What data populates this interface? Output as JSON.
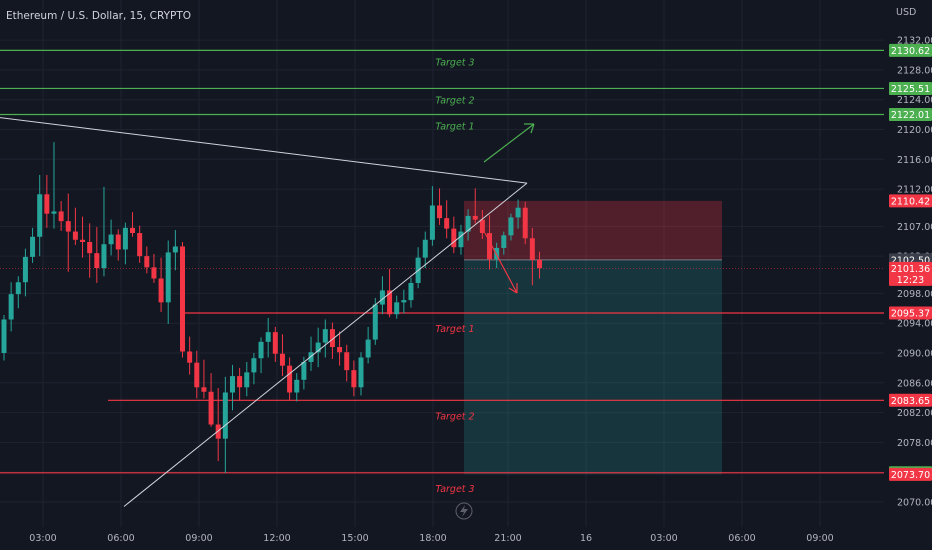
{
  "header": {
    "symbol": "Ethereum / U.S. Dollar, 15, CRYPTO"
  },
  "axis": {
    "currency": "USD"
  },
  "chart_data": {
    "type": "candlestick",
    "symbol": "Ethereum / U.S. Dollar",
    "interval": "15",
    "exchange": "CRYPTO",
    "ylim": [
      2069,
      2135
    ],
    "y_ticks": [
      2070,
      2074,
      2078,
      2082,
      2086,
      2090,
      2094,
      2098,
      2103,
      2107,
      2112,
      2116,
      2120,
      2124,
      2128,
      2132
    ],
    "x_ticks": [
      "03:00",
      "06:00",
      "09:00",
      "12:00",
      "15:00",
      "18:00",
      "21:00",
      "16",
      "03:00",
      "06:00",
      "09:00"
    ],
    "ohlc": [
      [
        2090,
        2095.1,
        2089,
        2094.5
      ],
      [
        2094.5,
        2099.5,
        2092.9,
        2097.9
      ],
      [
        2097.9,
        2100.3,
        2096,
        2099.5
      ],
      [
        2099.5,
        2104,
        2097.6,
        2102.9
      ],
      [
        2102.9,
        2106.8,
        2102.1,
        2105.6
      ],
      [
        2105.6,
        2113.9,
        2103,
        2111.3
      ],
      [
        2111.3,
        2113.9,
        2106.8,
        2108.7
      ],
      [
        2108.7,
        2118.3,
        2106.7,
        2109
      ],
      [
        2109,
        2110.4,
        2106.4,
        2107.7
      ],
      [
        2107.7,
        2111.4,
        2100.9,
        2106.3
      ],
      [
        2106.3,
        2109.5,
        2104.5,
        2105.2
      ],
      [
        2105.2,
        2108.3,
        2102.8,
        2104.9
      ],
      [
        2104.9,
        2107.4,
        2100.1,
        2103.4
      ],
      [
        2103.4,
        2106.9,
        2099.4,
        2101.4
      ],
      [
        2101.4,
        2112.3,
        2100.3,
        2104.6
      ],
      [
        2104.6,
        2107.9,
        2103.1,
        2105.9
      ],
      [
        2105.9,
        2106.6,
        2102.4,
        2103.9
      ],
      [
        2103.9,
        2107.5,
        2101.9,
        2106.8
      ],
      [
        2106.8,
        2108.9,
        2105.6,
        2106.1
      ],
      [
        2106.1,
        2107.1,
        2102.1,
        2103
      ],
      [
        2103,
        2104.3,
        2100.7,
        2101.5
      ],
      [
        2101.5,
        2103.3,
        2099.4,
        2100
      ],
      [
        2100,
        2102.8,
        2095.5,
        2096.8
      ],
      [
        2096.8,
        2105.1,
        2093.9,
        2103.5
      ],
      [
        2103.5,
        2106.5,
        2101.1,
        2104.3
      ],
      [
        2104.3,
        2104.9,
        2089.4,
        2090.2
      ],
      [
        2090.2,
        2092.2,
        2087.1,
        2088.7
      ],
      [
        2088.7,
        2090.3,
        2083.9,
        2085.4
      ],
      [
        2085.4,
        2089.1,
        2083.9,
        2084.8
      ],
      [
        2084.8,
        2087.3,
        2080.1,
        2080.4
      ],
      [
        2080.4,
        2085.3,
        2075.5,
        2078.5
      ],
      [
        2078.5,
        2086.8,
        2073.9,
        2084.7
      ],
      [
        2084.7,
        2088.4,
        2082.3,
        2086.9
      ],
      [
        2086.9,
        2088,
        2083.6,
        2085.4
      ],
      [
        2085.4,
        2088.8,
        2084.2,
        2087.4
      ],
      [
        2087.4,
        2090,
        2085.8,
        2089.3
      ],
      [
        2089.3,
        2092.1,
        2087.3,
        2091.5
      ],
      [
        2091.5,
        2094.7,
        2089.4,
        2092.8
      ],
      [
        2092.8,
        2093.5,
        2088.8,
        2089.9
      ],
      [
        2089.9,
        2092.5,
        2086.9,
        2088.3
      ],
      [
        2088.3,
        2089.4,
        2083.6,
        2084.7
      ],
      [
        2084.7,
        2087.3,
        2083.5,
        2086.4
      ],
      [
        2086.4,
        2089.5,
        2085.1,
        2088.8
      ],
      [
        2088.8,
        2092.2,
        2087.6,
        2090.1
      ],
      [
        2090.1,
        2093.4,
        2088.1,
        2091.4
      ],
      [
        2091.4,
        2094.5,
        2089.4,
        2093.2
      ],
      [
        2093.2,
        2094.1,
        2089.2,
        2090.8
      ],
      [
        2090.8,
        2092.9,
        2088.3,
        2090.1
      ],
      [
        2090.1,
        2091.1,
        2086.2,
        2087.7
      ],
      [
        2087.7,
        2089,
        2084.2,
        2085.4
      ],
      [
        2085.4,
        2090.1,
        2084.3,
        2089.4
      ],
      [
        2089.4,
        2093.5,
        2088.6,
        2091.8
      ],
      [
        2091.8,
        2097.4,
        2091.1,
        2096.5
      ],
      [
        2096.5,
        2100.3,
        2095.2,
        2098.4
      ],
      [
        2098.4,
        2101.3,
        2094.8,
        2095.2
      ],
      [
        2095.2,
        2097.7,
        2094.6,
        2096.8
      ],
      [
        2096.8,
        2098.5,
        2095.3,
        2097.1
      ],
      [
        2097.1,
        2100.1,
        2096.1,
        2099.4
      ],
      [
        2099.4,
        2104.2,
        2098.7,
        2102.8
      ],
      [
        2102.8,
        2106.3,
        2101.4,
        2105.2
      ],
      [
        2105.2,
        2112.4,
        2104.4,
        2109.8
      ],
      [
        2109.8,
        2112.1,
        2107.2,
        2108.1
      ],
      [
        2108.1,
        2110.5,
        2105.4,
        2106.7
      ],
      [
        2106.7,
        2108.3,
        2103.4,
        2104.2
      ],
      [
        2104.2,
        2107.2,
        2103.2,
        2106.3
      ],
      [
        2106.3,
        2109.3,
        2105.1,
        2108.4
      ],
      [
        2108.4,
        2112.1,
        2107.4,
        2107.9
      ],
      [
        2107.9,
        2109.2,
        2105.3,
        2106.1
      ],
      [
        2106.1,
        2108.5,
        2101.2,
        2102.6
      ],
      [
        2102.6,
        2104.8,
        2101.4,
        2104.1
      ],
      [
        2104.1,
        2106.3,
        2103.2,
        2105.8
      ],
      [
        2105.8,
        2108.7,
        2105.1,
        2108.2
      ],
      [
        2108.2,
        2110.6,
        2106.7,
        2109.5
      ],
      [
        2109.5,
        2110.3,
        2104.6,
        2105.4
      ],
      [
        2105.4,
        2106.8,
        2099.1,
        2102.5
      ],
      [
        2102.5,
        2103.6,
        2100,
        2101.4
      ]
    ],
    "hlines": [
      {
        "label": "Target 3",
        "value": 2130.62,
        "color": "#4caf50",
        "side": "up"
      },
      {
        "label": "Target 2",
        "value": 2125.51,
        "color": "#4caf50",
        "side": "up"
      },
      {
        "label": "Target 1",
        "value": 2122.01,
        "color": "#4caf50",
        "side": "up"
      },
      {
        "label": "Target 1",
        "value": 2095.37,
        "color": "#f23645",
        "side": "down"
      },
      {
        "label": "Target 2",
        "value": 2083.65,
        "color": "#f23645",
        "side": "down"
      },
      {
        "label": "Target 3",
        "value": 2073.92,
        "color": "#f23645",
        "side": "down"
      }
    ],
    "price_labels": [
      {
        "text": "2130.62",
        "color": "#4caf50",
        "value": 2130.62
      },
      {
        "text": "2125.51",
        "color": "#4caf50",
        "value": 2125.51
      },
      {
        "text": "2122.01",
        "color": "#4caf50",
        "value": 2122.01
      },
      {
        "text": "2110.42",
        "color": "#f23645",
        "value": 2110.42
      },
      {
        "text": "2102.50",
        "color": "#3a3e4a",
        "value": 2102.5
      },
      {
        "text": "2101.36",
        "color": "#f23645",
        "value": 2101.36,
        "sub": "12:23"
      },
      {
        "text": "2095.37",
        "color": "#f23645",
        "value": 2095.37
      },
      {
        "text": "2083.65",
        "color": "#f23645",
        "value": 2083.65
      },
      {
        "text": "2073.92",
        "color": "#4caf50",
        "value": 2073.92
      },
      {
        "text": "2073.70",
        "color": "#f23645",
        "value": 2073.7
      }
    ],
    "position": {
      "direction": "short",
      "stop": 2110.42,
      "entry": 2102.5,
      "target": 2073.7
    },
    "current_price": 2101.36,
    "colors": {
      "up": "#26a69a",
      "down": "#f23645",
      "bg": "#131722",
      "grid": "#1f2330",
      "text": "#b2b5be"
    }
  }
}
